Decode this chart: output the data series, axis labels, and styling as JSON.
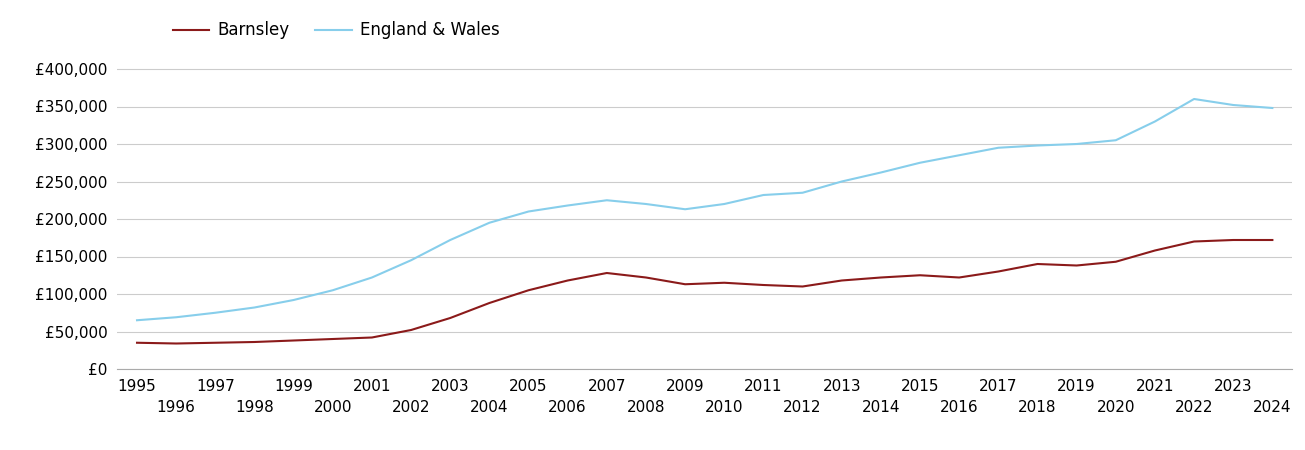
{
  "barnsley_years": [
    1995,
    1996,
    1997,
    1998,
    1999,
    2000,
    2001,
    2002,
    2003,
    2004,
    2005,
    2006,
    2007,
    2008,
    2009,
    2010,
    2011,
    2012,
    2013,
    2014,
    2015,
    2016,
    2017,
    2018,
    2019,
    2020,
    2021,
    2022,
    2023,
    2024
  ],
  "barnsley_values": [
    35000,
    34000,
    35000,
    36000,
    38000,
    40000,
    42000,
    52000,
    68000,
    88000,
    105000,
    118000,
    128000,
    122000,
    113000,
    115000,
    112000,
    110000,
    118000,
    122000,
    125000,
    122000,
    130000,
    140000,
    138000,
    143000,
    158000,
    170000,
    172000,
    172000
  ],
  "ew_years": [
    1995,
    1996,
    1997,
    1998,
    1999,
    2000,
    2001,
    2002,
    2003,
    2004,
    2005,
    2006,
    2007,
    2008,
    2009,
    2010,
    2011,
    2012,
    2013,
    2014,
    2015,
    2016,
    2017,
    2018,
    2019,
    2020,
    2021,
    2022,
    2023,
    2024
  ],
  "ew_values": [
    65000,
    69000,
    75000,
    82000,
    92000,
    105000,
    122000,
    145000,
    172000,
    195000,
    210000,
    218000,
    225000,
    220000,
    213000,
    220000,
    232000,
    235000,
    250000,
    262000,
    275000,
    285000,
    295000,
    298000,
    300000,
    305000,
    330000,
    360000,
    352000,
    348000
  ],
  "barnsley_color": "#8B1A1A",
  "ew_color": "#87CEEB",
  "barnsley_label": "Barnsley",
  "ew_label": "England & Wales",
  "ylim": [
    0,
    420000
  ],
  "yticks": [
    0,
    50000,
    100000,
    150000,
    200000,
    250000,
    300000,
    350000,
    400000
  ],
  "xlim_min": 1994.5,
  "xlim_max": 2024.5,
  "bg_color": "#ffffff",
  "grid_color": "#cccccc",
  "line_width": 1.5,
  "legend_fontsize": 12,
  "tick_fontsize": 11
}
